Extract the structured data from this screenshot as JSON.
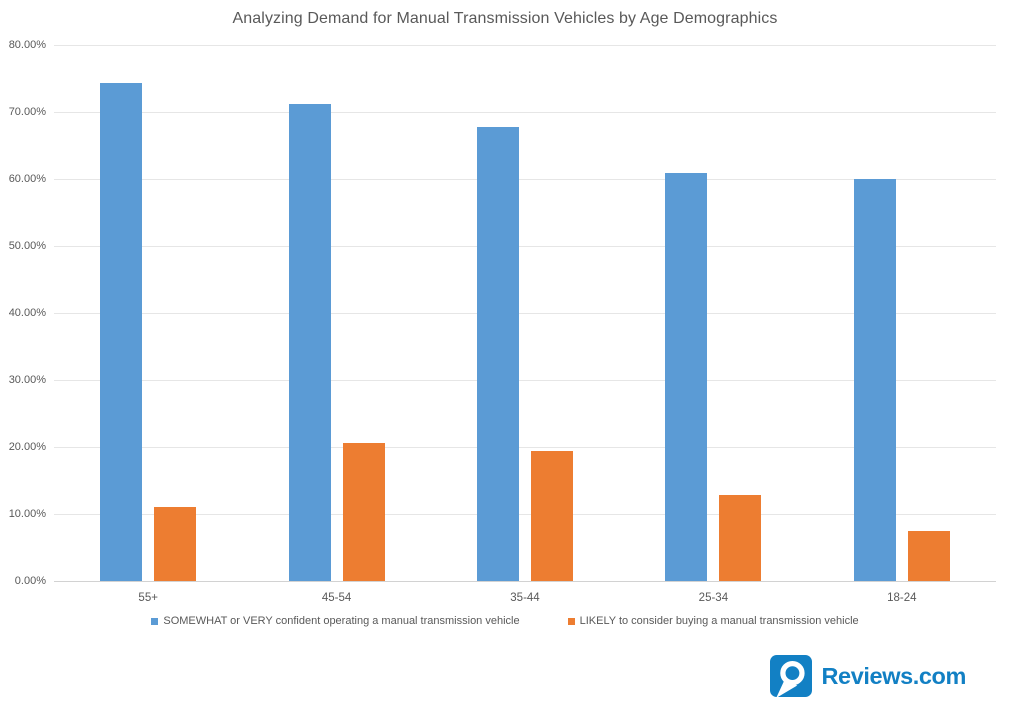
{
  "title": "Analyzing Demand for Manual Transmission Vehicles by Age Demographics",
  "chart_data": {
    "type": "bar",
    "categories": [
      "55+",
      "45-54",
      "35-44",
      "25-34",
      "18-24"
    ],
    "series": [
      {
        "name": "SOMEWHAT or VERY confident operating a manual transmission vehicle",
        "color": "#5b9bd5",
        "values": [
          74.3,
          71.2,
          67.7,
          60.9,
          60.0
        ]
      },
      {
        "name": "LIKELY to consider buying a manual transmission vehicle",
        "color": "#ed7d31",
        "values": [
          11.0,
          20.6,
          19.4,
          12.9,
          7.5
        ]
      }
    ],
    "ylabel": "",
    "xlabel": "",
    "ylim": [
      0,
      80
    ],
    "ytick_step": 10,
    "ytick_labels": [
      "0.00%",
      "10.00%",
      "20.00%",
      "30.00%",
      "40.00%",
      "50.00%",
      "60.00%",
      "70.00%",
      "80.00%"
    ],
    "grid": true,
    "legend_position": "bottom"
  },
  "branding": {
    "logo_text": "Reviews.com",
    "logo_color": "#1280c4"
  }
}
